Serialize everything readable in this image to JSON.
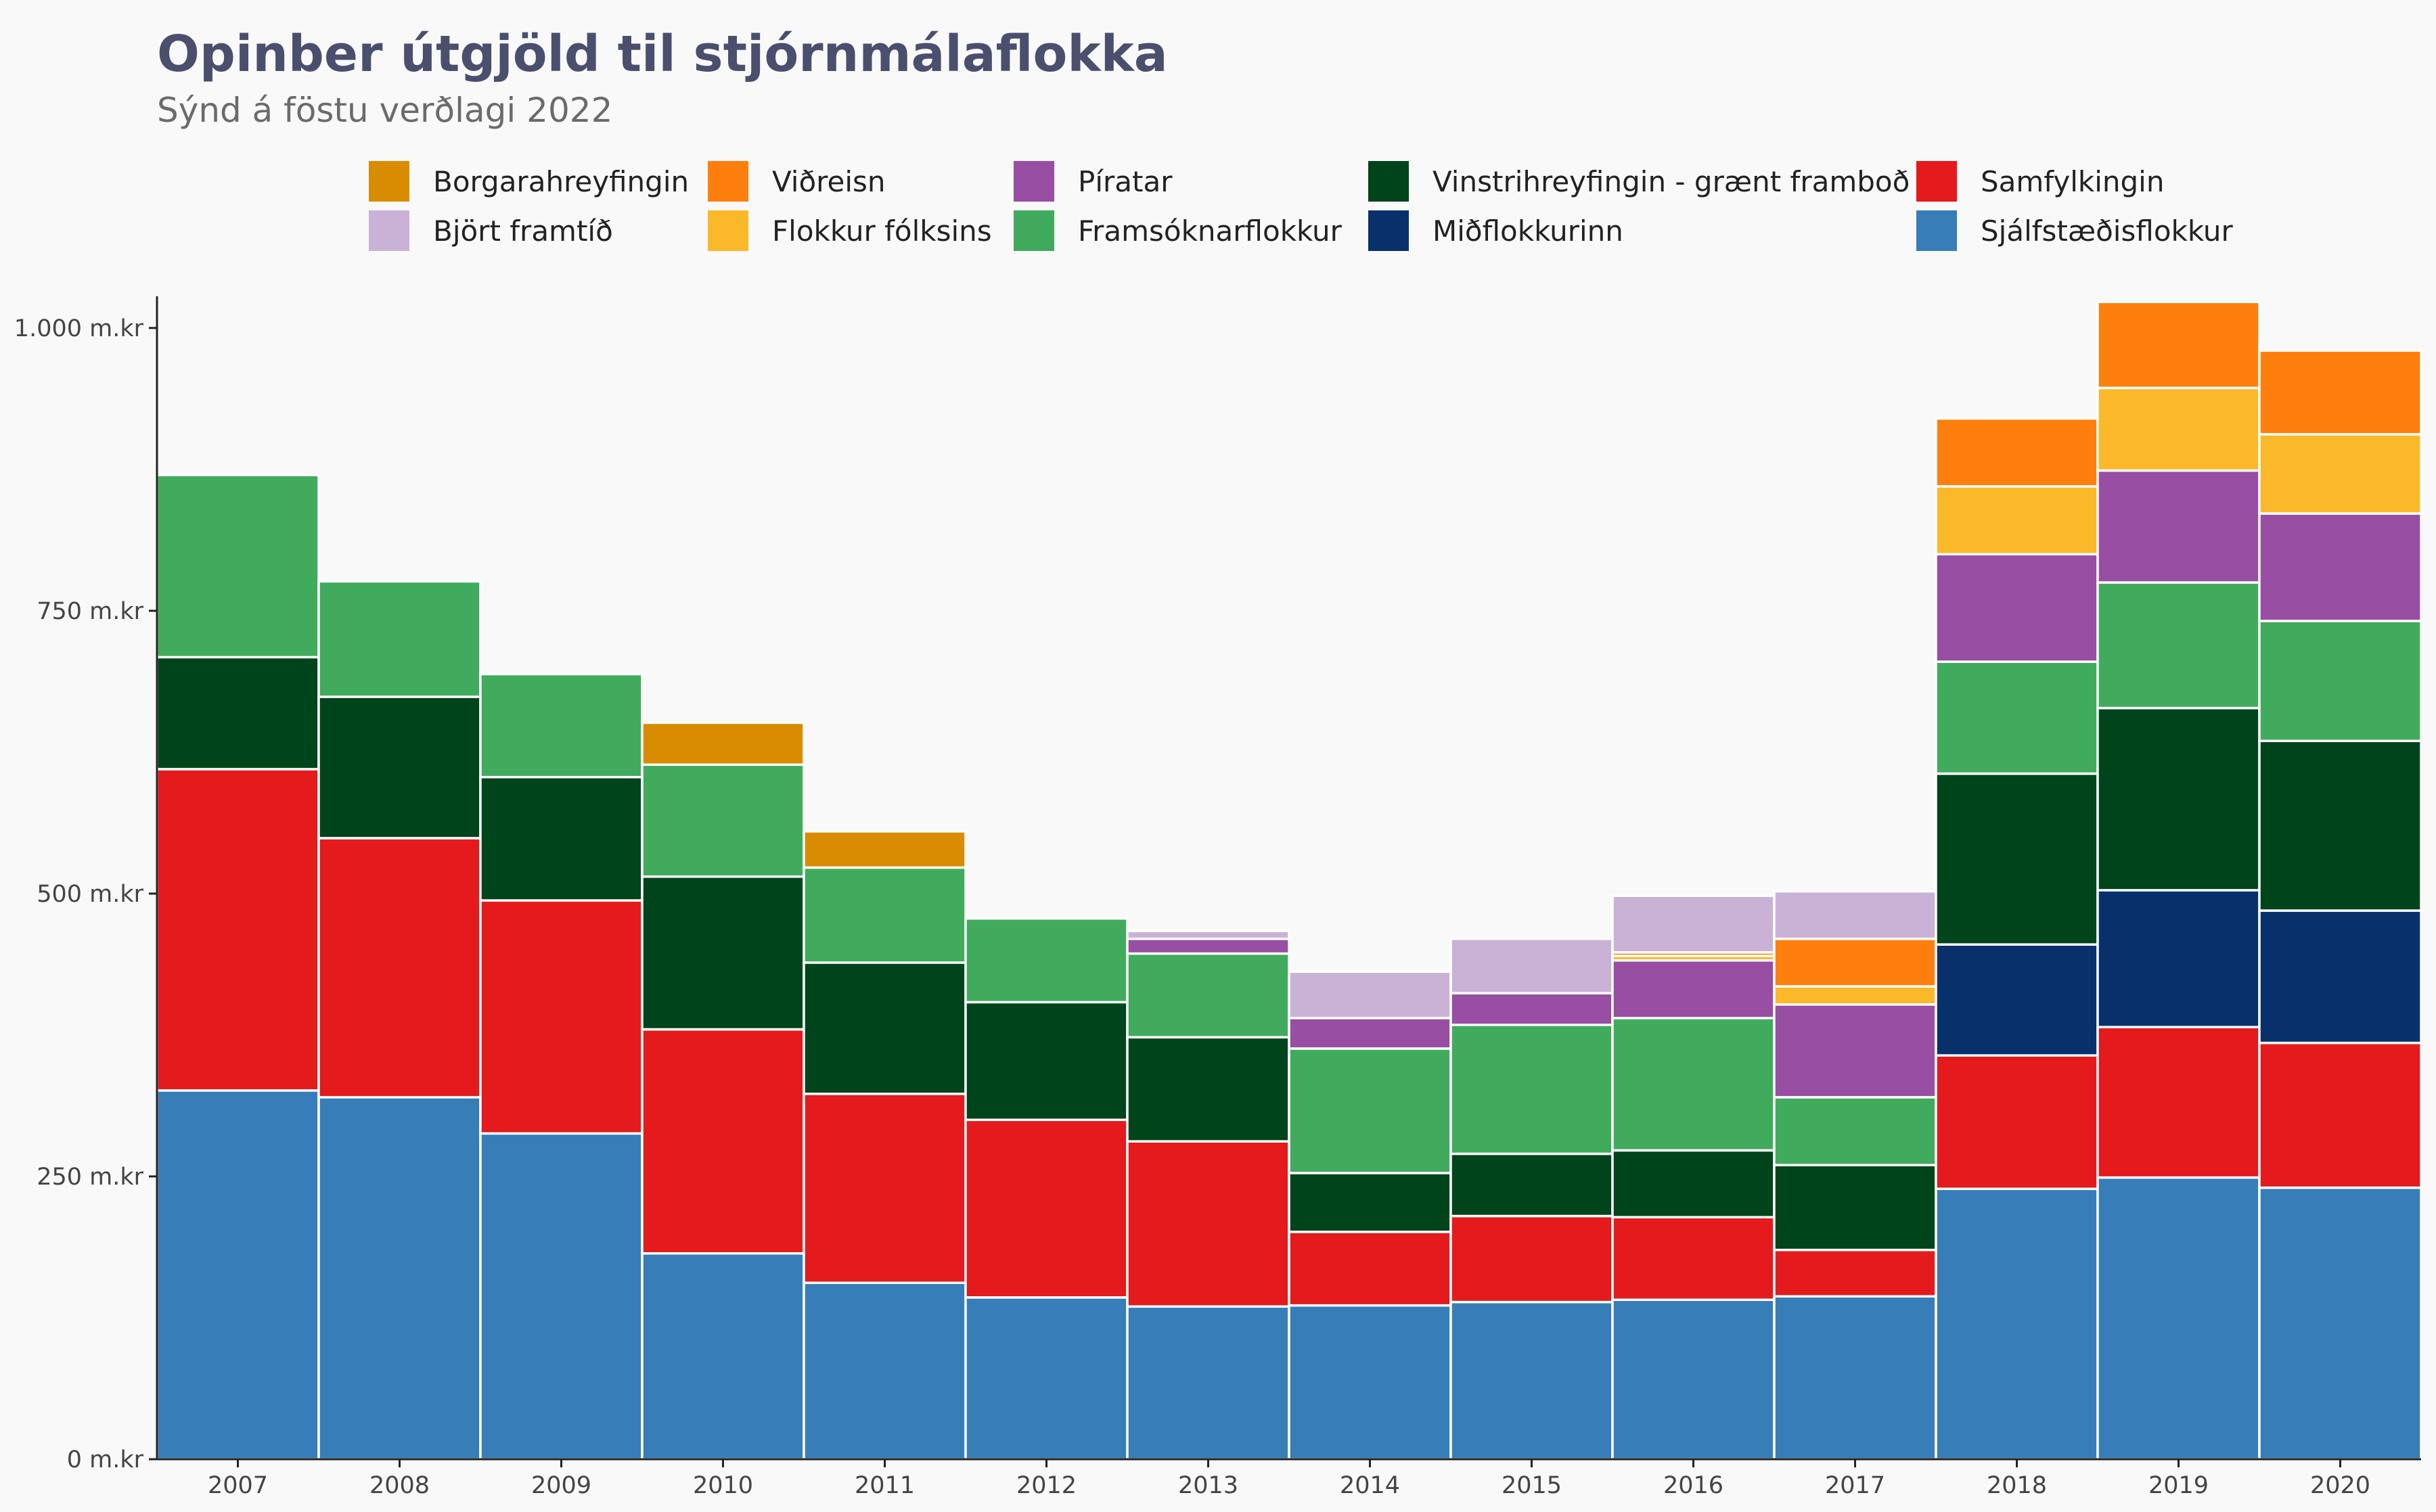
{
  "chart_data": {
    "type": "bar",
    "stacked": true,
    "title": "Opinber útgjöld til stjórnmálaflokka",
    "subtitle": "Sýnd á föstu verðlagi 2022",
    "xlabel": "",
    "ylabel": "",
    "ylim": [
      0,
      1025
    ],
    "y_ticks": [
      {
        "value": 0,
        "label": "0 m.kr"
      },
      {
        "value": 250,
        "label": "250 m.kr"
      },
      {
        "value": 500,
        "label": "500 m.kr"
      },
      {
        "value": 750,
        "label": "750 m.kr"
      },
      {
        "value": 1000,
        "label": "1.000 m.kr"
      }
    ],
    "grid": false,
    "legend_position": "top",
    "categories": [
      "2007",
      "2008",
      "2009",
      "2010",
      "2011",
      "2012",
      "2013",
      "2014",
      "2015",
      "2016",
      "2017",
      "2018",
      "2019",
      "2020"
    ],
    "legend_order": [
      "Borgarahreyfingin",
      "Björt framtíð",
      "Viðreisn",
      "Flokkur fólksins",
      "Píratar",
      "Framsóknarflokkur",
      "Vinstrihreyfingin - grænt framboð",
      "Miðflokkurinn",
      "Samfylkingin",
      "Sjálfstæðisflokkur"
    ],
    "series": [
      {
        "name": "Sjálfstæðisflokkur",
        "color": "#377eb8",
        "values": [
          326,
          320,
          288,
          182,
          156,
          143,
          135,
          136,
          139,
          141,
          144,
          239,
          249,
          240
        ]
      },
      {
        "name": "Samfylkingin",
        "color": "#e41a1c",
        "values": [
          284,
          229,
          206,
          198,
          167,
          157,
          146,
          65,
          76,
          73,
          41,
          118,
          133,
          128
        ]
      },
      {
        "name": "Miðflokkurinn",
        "color": "#08306b",
        "values": [
          0,
          0,
          0,
          0,
          0,
          0,
          0,
          0,
          0,
          0,
          0,
          98,
          121,
          117
        ]
      },
      {
        "name": "Vinstrihreyfingin - grænt framboð",
        "color": "#00441b",
        "values": [
          99,
          125,
          109,
          135,
          116,
          104,
          92,
          52,
          55,
          59,
          75,
          151,
          161,
          150
        ]
      },
      {
        "name": "Framsóknarflokkur",
        "color": "#41ab5d",
        "values": [
          161,
          102,
          91,
          99,
          84,
          74,
          74,
          110,
          114,
          117,
          60,
          99,
          111,
          106
        ]
      },
      {
        "name": "Píratar",
        "color": "#984ea3",
        "values": [
          0,
          0,
          0,
          0,
          0,
          0,
          13,
          27,
          28,
          51,
          82,
          95,
          99,
          95
        ]
      },
      {
        "name": "Flokkur fólksins",
        "color": "#fbb829",
        "values": [
          0,
          0,
          0,
          0,
          0,
          0,
          0,
          0,
          0,
          4,
          16,
          60,
          73,
          70
        ]
      },
      {
        "name": "Viðreisn",
        "color": "#ff7f0e",
        "values": [
          0,
          0,
          0,
          0,
          0,
          0,
          0,
          0,
          0,
          3,
          42,
          60,
          76,
          74
        ]
      },
      {
        "name": "Björt framtíð",
        "color": "#cab2d6",
        "values": [
          0,
          0,
          0,
          0,
          0,
          0,
          7,
          41,
          48,
          50,
          42,
          0,
          0,
          0
        ]
      },
      {
        "name": "Borgarahreyfingin",
        "color": "#d98c00",
        "values": [
          0,
          0,
          0,
          37,
          32,
          0,
          0,
          0,
          0,
          0,
          0,
          0,
          0,
          0
        ]
      }
    ]
  }
}
